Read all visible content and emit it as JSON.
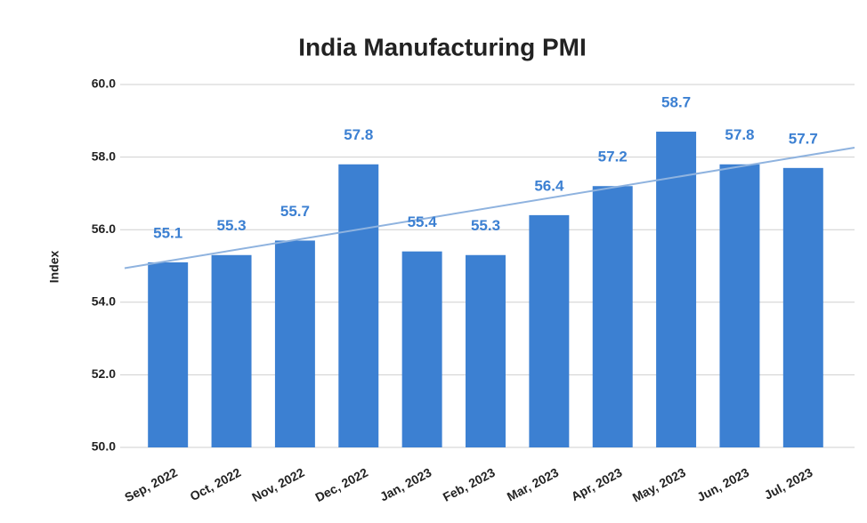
{
  "chart_data": {
    "type": "bar",
    "title": "India Manufacturing PMI",
    "y_label": "Index",
    "categories": [
      "Sep, 2022",
      "Oct, 2022",
      "Nov, 2022",
      "Dec, 2022",
      "Jan, 2023",
      "Feb, 2023",
      "Mar, 2023",
      "Apr, 2023",
      "May, 2023",
      "Jun, 2023",
      "Jul, 2023"
    ],
    "values": [
      55.1,
      55.3,
      55.7,
      57.8,
      55.4,
      55.3,
      56.4,
      57.2,
      58.7,
      57.8,
      57.7
    ],
    "color": "#3c80d2",
    "label_color": "#3c80d2",
    "trendline": true,
    "trendline_color": "#8fb3df",
    "ylim": [
      50,
      60
    ],
    "yticks": [
      {
        "value": 50,
        "label": "50.0"
      },
      {
        "value": 52,
        "label": "52.0"
      },
      {
        "value": 54,
        "label": "54.0"
      },
      {
        "value": 56,
        "label": "56.0"
      },
      {
        "value": 58,
        "label": "58.0"
      },
      {
        "value": 60,
        "label": "60.0"
      }
    ],
    "grid": true
  }
}
